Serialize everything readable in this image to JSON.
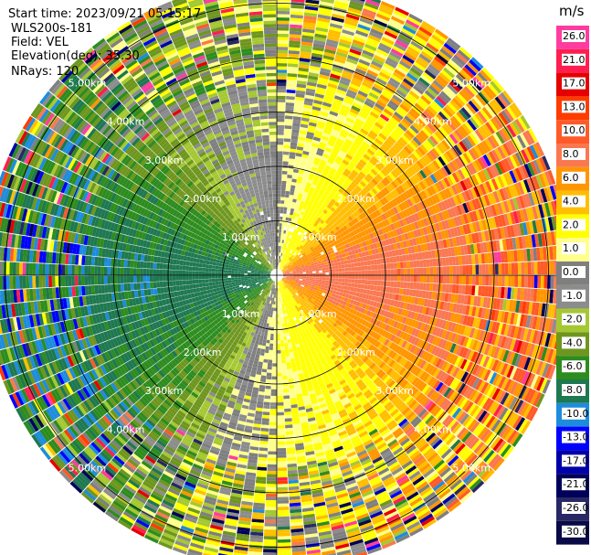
{
  "header": {
    "start_time": "Start time: 2023/09/21 05:15:17",
    "instrument": "WLS200s-181",
    "field": "Field: VEL",
    "elevation": "Elevation(deg): 35.30",
    "nrays": "NRays: 120"
  },
  "chart_data": {
    "type": "heatmap",
    "projection": "polar PPI (plan position indicator)",
    "field": "VEL",
    "units": "m/s",
    "n_rays": 120,
    "range_rings_km": [
      1.0,
      2.0,
      3.0,
      4.0,
      5.0
    ],
    "ring_labels": [
      "1.00km",
      "2.00km",
      "3.00km",
      "4.00km",
      "5.00km"
    ],
    "max_range_km": 5.4,
    "colorbar": {
      "unit_label": "m/s",
      "ticks": [
        "26.0",
        "21.0",
        "17.0",
        "13.0",
        "10.0",
        "8.0",
        "6.0",
        "4.0",
        "2.0",
        "1.0",
        "0.0",
        "-1.0",
        "-2.0",
        "-4.0",
        "-6.0",
        "-8.0",
        "-10.0",
        "-13.0",
        "-17.0",
        "-21.0",
        "-26.0",
        "-30.0"
      ],
      "colors": [
        "#ff3ca0",
        "#ff1e50",
        "#e60000",
        "#ff3c00",
        "#ff5a28",
        "#fa7850",
        "#ff9600",
        "#ffbe00",
        "#ffff00",
        "#ffff8c",
        "#7f7f7f",
        "#8c8c8c",
        "#a5c832",
        "#6e961e",
        "#2d8c1e",
        "#1e7850",
        "#1e8cdc",
        "#0000ff",
        "#0000aa",
        "#00005a",
        "#282864",
        "#0a0a46"
      ]
    },
    "sectors": [
      {
        "from_deg": 0,
        "to_deg": 40,
        "velocity_trend": "0 to 6 m/s (yellow-orange)"
      },
      {
        "from_deg": 40,
        "to_deg": 140,
        "velocity_trend": "2 to 10 m/s (yellow-orange-salmon)"
      },
      {
        "from_deg": 140,
        "to_deg": 200,
        "velocity_trend": "0 to 6 m/s (yellow-orange)"
      },
      {
        "from_deg": 200,
        "to_deg": 330,
        "velocity_trend": "-1 to -8 m/s (green)"
      },
      {
        "from_deg": 330,
        "to_deg": 360,
        "velocity_trend": "-1 to 0 m/s (gray/olive)"
      }
    ]
  }
}
